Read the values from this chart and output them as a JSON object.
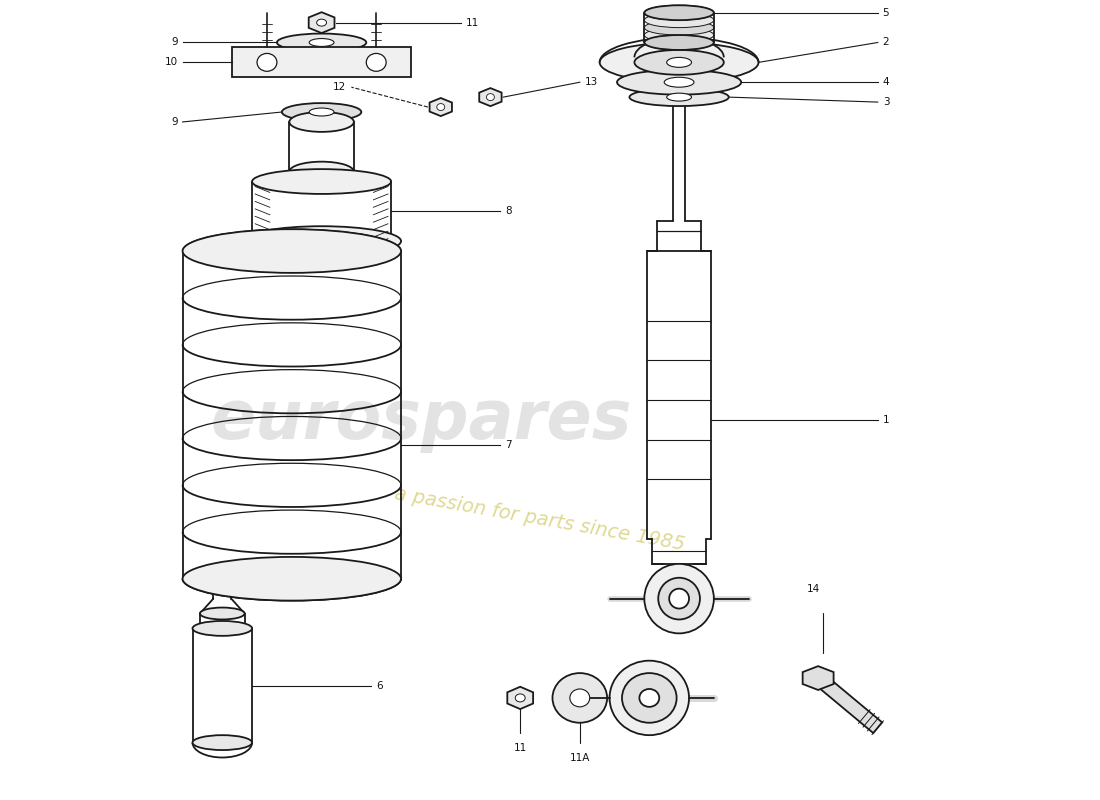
{
  "background_color": "#ffffff",
  "line_color": "#1a1a1a",
  "label_color": "#111111",
  "watermark_text1": "eurospares",
  "watermark_text2": "a passion for parts since 1985",
  "watermark_color1": "#c8c8c8",
  "watermark_color2": "#d4cc70"
}
